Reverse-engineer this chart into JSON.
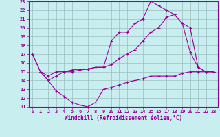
{
  "xlabel": "Windchill (Refroidissement éolien,°C)",
  "xlim": [
    -0.5,
    23.5
  ],
  "ylim": [
    11,
    23
  ],
  "xticks": [
    0,
    1,
    2,
    3,
    4,
    5,
    6,
    7,
    8,
    9,
    10,
    11,
    12,
    13,
    14,
    15,
    16,
    17,
    18,
    19,
    20,
    21,
    22,
    23
  ],
  "yticks": [
    11,
    12,
    13,
    14,
    15,
    16,
    17,
    18,
    19,
    20,
    21,
    22,
    23
  ],
  "bg_color": "#c8eef0",
  "grid_color": "#9bbcbe",
  "line_color": "#990099",
  "lines": [
    {
      "pts": [
        [
          0,
          17
        ],
        [
          1,
          15
        ],
        [
          2,
          14
        ],
        [
          3,
          14.5
        ],
        [
          4,
          15
        ],
        [
          5,
          15
        ],
        [
          6,
          15.2
        ],
        [
          7,
          15.3
        ],
        [
          8,
          15.5
        ],
        [
          9,
          15.5
        ],
        [
          10,
          18.5
        ],
        [
          11,
          19.5
        ],
        [
          12,
          19.5
        ],
        [
          13,
          20.5
        ],
        [
          14,
          21
        ],
        [
          15,
          23
        ],
        [
          16,
          22.5
        ],
        [
          17,
          22
        ],
        [
          18,
          21.5
        ],
        [
          19,
          20.5
        ],
        [
          20,
          17.2
        ],
        [
          21,
          15.5
        ],
        [
          22,
          15
        ],
        [
          23,
          15
        ]
      ]
    },
    {
      "pts": [
        [
          0,
          17
        ],
        [
          1,
          15
        ],
        [
          2,
          14
        ],
        [
          3,
          12.8
        ],
        [
          4,
          12.2
        ],
        [
          5,
          11.5
        ],
        [
          6,
          11.2
        ],
        [
          7,
          11
        ],
        [
          8,
          11.5
        ],
        [
          9,
          13
        ],
        [
          10,
          13.2
        ],
        [
          11,
          13.5
        ],
        [
          12,
          13.8
        ],
        [
          13,
          14
        ],
        [
          14,
          14.2
        ],
        [
          15,
          14.5
        ],
        [
          16,
          14.5
        ],
        [
          17,
          14.5
        ],
        [
          18,
          14.5
        ],
        [
          19,
          14.8
        ],
        [
          20,
          15
        ],
        [
          21,
          15
        ],
        [
          22,
          15
        ],
        [
          23,
          15
        ]
      ]
    },
    {
      "pts": [
        [
          1,
          15
        ],
        [
          2,
          14.5
        ],
        [
          3,
          15
        ],
        [
          4,
          15
        ],
        [
          5,
          15.2
        ],
        [
          6,
          15.3
        ],
        [
          7,
          15.3
        ],
        [
          8,
          15.5
        ],
        [
          9,
          15.5
        ],
        [
          10,
          15.8
        ],
        [
          11,
          16.5
        ],
        [
          12,
          17
        ],
        [
          13,
          17.5
        ],
        [
          14,
          18.5
        ],
        [
          15,
          19.5
        ],
        [
          16,
          20
        ],
        [
          17,
          21.2
        ],
        [
          18,
          21.5
        ],
        [
          19,
          20.5
        ],
        [
          20,
          20
        ],
        [
          21,
          15.5
        ],
        [
          22,
          15
        ],
        [
          23,
          15
        ]
      ]
    }
  ]
}
